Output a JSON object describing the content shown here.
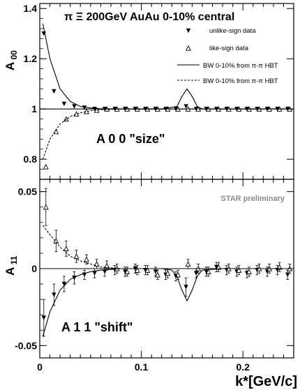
{
  "chart_data": [
    {
      "type": "scatter",
      "panel": "top",
      "title": "π Ξ  200GeV AuAu 0-10% central",
      "ylabel": "A 00",
      "annotation": "A 0 0  \"size\"",
      "xlim": [
        0,
        0.25
      ],
      "ylim": [
        0.72,
        1.42
      ],
      "xticks": [
        0,
        0.1,
        0.2
      ],
      "yticks": [
        0.8,
        1,
        1.2,
        1.4
      ],
      "yticklabels": [
        "0.8",
        "1",
        "1.2",
        "1.4"
      ],
      "reference_line": 1,
      "legend": {
        "placement": "top-right",
        "entries": [
          {
            "label": "unlike-sign data",
            "marker": "triangle-down-filled"
          },
          {
            "label": "like-sign data",
            "marker": "triangle-up-open"
          },
          {
            "label": "BW 0-10% from π-π HBT",
            "style": "solid"
          },
          {
            "label": "BW 0-10% from π-π HBT",
            "style": "dashed"
          }
        ]
      },
      "series": [
        {
          "name": "unlike-sign data",
          "marker": "triangle-down-filled",
          "x": [
            0.005,
            0.015,
            0.025,
            0.035,
            0.045,
            0.055,
            0.065,
            0.075,
            0.085,
            0.095,
            0.105,
            0.115,
            0.125,
            0.135,
            0.145,
            0.155,
            0.165,
            0.175,
            0.185,
            0.195,
            0.205,
            0.215,
            0.225,
            0.235,
            0.245
          ],
          "y": [
            1.3,
            1.07,
            1.02,
            1.01,
            1.005,
            1.0,
            1.0,
            1.0,
            1.0,
            1.0,
            1.0,
            1.0,
            1.0,
            1.0,
            1.01,
            1.0,
            1.0,
            1.0,
            1.0,
            1.0,
            1.0,
            1.0,
            1.0,
            1.0,
            1.0
          ]
        },
        {
          "name": "like-sign data",
          "marker": "triangle-up-open",
          "x": [
            0.005,
            0.015,
            0.025,
            0.035,
            0.045,
            0.055,
            0.065,
            0.075,
            0.085,
            0.095,
            0.105,
            0.115,
            0.125,
            0.135,
            0.145,
            0.155,
            0.165,
            0.175,
            0.185,
            0.195,
            0.205,
            0.215,
            0.225,
            0.235,
            0.245
          ],
          "y": [
            0.77,
            0.91,
            0.96,
            0.98,
            0.99,
            0.995,
            1.0,
            1.0,
            1.0,
            1.0,
            1.0,
            1.0,
            1.0,
            1.0,
            1.0,
            1.0,
            1.0,
            1.0,
            1.0,
            1.0,
            1.0,
            1.0,
            1.0,
            1.0,
            1.0
          ]
        },
        {
          "name": "BW 0-10% from π-π HBT",
          "style": "solid",
          "x": [
            0.003,
            0.01,
            0.02,
            0.03,
            0.04,
            0.05,
            0.06,
            0.08,
            0.1,
            0.12,
            0.135,
            0.14,
            0.145,
            0.15,
            0.155,
            0.16,
            0.18,
            0.2,
            0.25
          ],
          "y": [
            1.34,
            1.2,
            1.08,
            1.03,
            1.01,
            1.004,
            1.001,
            1.0,
            1.0,
            1.0,
            1.01,
            1.05,
            1.08,
            1.05,
            1.01,
            1.0,
            1.0,
            1.0,
            1.0
          ]
        },
        {
          "name": "BW 0-10% from π-π HBT",
          "style": "dashed",
          "x": [
            0.003,
            0.01,
            0.02,
            0.03,
            0.04,
            0.05,
            0.06,
            0.08,
            0.1,
            0.15,
            0.25
          ],
          "y": [
            0.8,
            0.88,
            0.94,
            0.97,
            0.985,
            0.993,
            0.997,
            1.0,
            1.0,
            1.0,
            1.0
          ]
        }
      ]
    },
    {
      "type": "scatter",
      "panel": "bottom",
      "ylabel": "A 11",
      "xlabel": "k*[GeV/c]",
      "annotation": "A 1 1  \"shift\"",
      "watermark": "STAR preliminary",
      "xlim": [
        0,
        0.25
      ],
      "ylim": [
        -0.058,
        0.058
      ],
      "xticks": [
        0,
        0.1,
        0.2
      ],
      "xticklabels": [
        "0",
        "0.1",
        "0.2"
      ],
      "yticks": [
        -0.05,
        0,
        0.05
      ],
      "yticklabels": [
        "-0.05",
        "0",
        "0.05"
      ],
      "reference_line": 0,
      "series": [
        {
          "name": "unlike-sign data",
          "marker": "triangle-down-filled",
          "x": [
            0.005,
            0.015,
            0.025,
            0.035,
            0.045,
            0.055,
            0.065,
            0.075,
            0.085,
            0.095,
            0.105,
            0.115,
            0.125,
            0.135,
            0.145,
            0.155,
            0.165,
            0.175,
            0.185,
            0.195,
            0.205,
            0.215,
            0.225,
            0.235,
            0.245
          ],
          "y": [
            -0.032,
            -0.017,
            -0.01,
            -0.006,
            -0.004,
            -0.003,
            -0.002,
            -0.001,
            -0.002,
            0.0,
            -0.001,
            -0.002,
            -0.004,
            -0.005,
            -0.012,
            -0.003,
            -0.002,
            0.001,
            -0.001,
            -0.002,
            -0.003,
            -0.001,
            -0.002,
            -0.001,
            -0.004
          ],
          "err": [
            0.012,
            0.007,
            0.005,
            0.004,
            0.003,
            0.003,
            0.003,
            0.003,
            0.003,
            0.003,
            0.003,
            0.003,
            0.003,
            0.003,
            0.006,
            0.003,
            0.003,
            0.003,
            0.003,
            0.003,
            0.003,
            0.003,
            0.003,
            0.003,
            0.003
          ]
        },
        {
          "name": "like-sign data",
          "marker": "triangle-up-open",
          "x": [
            0.005,
            0.015,
            0.025,
            0.035,
            0.045,
            0.055,
            0.065,
            0.075,
            0.085,
            0.095,
            0.105,
            0.115,
            0.125,
            0.135,
            0.145,
            0.155,
            0.165,
            0.175,
            0.185,
            0.195,
            0.205,
            0.215,
            0.225,
            0.235,
            0.245
          ],
          "y": [
            0.04,
            0.018,
            0.013,
            0.008,
            0.006,
            0.003,
            0.002,
            0.0,
            -0.002,
            -0.001,
            -0.001,
            -0.004,
            -0.003,
            -0.004,
            0.003,
            0.0,
            -0.002,
            0.001,
            0.0,
            -0.001,
            -0.002,
            0.0,
            0.0,
            0.001,
            0.0
          ],
          "err": [
            0.012,
            0.007,
            0.005,
            0.004,
            0.003,
            0.003,
            0.003,
            0.003,
            0.003,
            0.003,
            0.003,
            0.003,
            0.003,
            0.003,
            0.003,
            0.003,
            0.003,
            0.003,
            0.003,
            0.003,
            0.003,
            0.003,
            0.003,
            0.003,
            0.003
          ]
        },
        {
          "name": "BW 0-10% from π-π HBT",
          "style": "solid",
          "x": [
            0.003,
            0.01,
            0.02,
            0.03,
            0.04,
            0.05,
            0.06,
            0.08,
            0.1,
            0.12,
            0.13,
            0.135,
            0.14,
            0.145,
            0.15,
            0.155,
            0.16,
            0.18,
            0.2,
            0.25
          ],
          "y": [
            -0.044,
            -0.028,
            -0.014,
            -0.007,
            -0.004,
            -0.002,
            -0.001,
            0.0,
            0.0,
            0.0,
            -0.001,
            -0.005,
            -0.014,
            -0.021,
            -0.014,
            -0.005,
            -0.001,
            0.0,
            0.0,
            0.0
          ]
        },
        {
          "name": "BW 0-10% from π-π HBT",
          "style": "dashed",
          "x": [
            0.003,
            0.01,
            0.02,
            0.03,
            0.04,
            0.05,
            0.06,
            0.08,
            0.1,
            0.15,
            0.25
          ],
          "y": [
            0.028,
            0.022,
            0.014,
            0.008,
            0.005,
            0.003,
            0.001,
            0.0,
            0.0,
            0.0,
            0.0
          ]
        }
      ]
    }
  ]
}
